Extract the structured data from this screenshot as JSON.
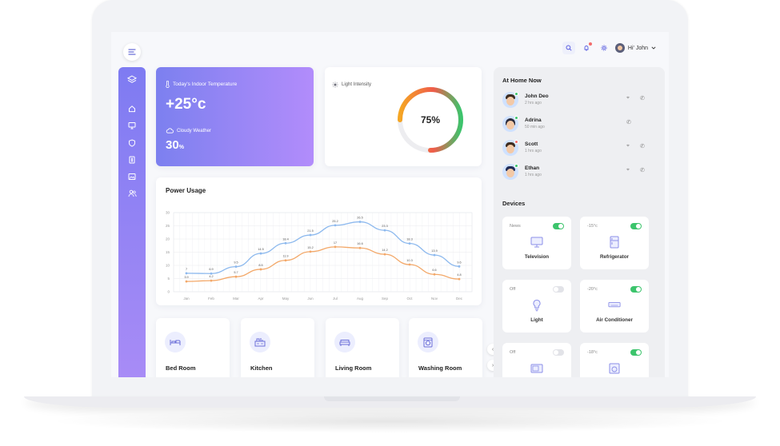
{
  "header": {
    "greeting": "Hi' John",
    "icons": [
      "search-icon",
      "bell-icon",
      "gear-icon",
      "chevron-down-icon"
    ]
  },
  "sidebar": {
    "icons": [
      "layers-icon",
      "home-icon",
      "monitor-icon",
      "shield-icon",
      "door-icon",
      "image-icon",
      "users-icon"
    ]
  },
  "temperature": {
    "title": "Today's Indoor Temperature",
    "value": "+25°c",
    "weather_label": "Cloudy Weather",
    "weather_value": "30",
    "weather_unit": "%"
  },
  "light": {
    "title": "Light Intensity",
    "value_label": "75%",
    "value": 0.75
  },
  "power": {
    "title": "Power Usage"
  },
  "chart_data": {
    "type": "line",
    "title": "Power Usage",
    "categories": [
      "Jan",
      "Feb",
      "Mar",
      "Apr",
      "May",
      "Jun",
      "Jul",
      "Aug",
      "Sep",
      "Oct",
      "Nov",
      "Dec"
    ],
    "yticks": [
      "0",
      "5",
      "10",
      "15",
      "20",
      "25",
      "30"
    ],
    "ylim": [
      0,
      30
    ],
    "grid": true,
    "series": [
      {
        "color": "#8db9ee",
        "values": [
          7,
          6.9,
          9.5,
          14.5,
          18.4,
          21.5,
          25.2,
          26.5,
          23.3,
          18.3,
          13.9,
          9.6
        ],
        "labels": [
          "7",
          "6.9",
          "9.5",
          "14.5",
          "18.4",
          "21.5",
          "25.2",
          "26.5",
          "23.3",
          "18.3",
          "13.9",
          "9.6"
        ]
      },
      {
        "color": "#f3a869",
        "values": [
          3.9,
          4.2,
          5.7,
          8.5,
          11.9,
          15.2,
          17,
          16.6,
          14.2,
          10.3,
          6.6,
          4.8
        ],
        "labels": [
          "3.9",
          "4.2",
          "5.7",
          "8.5",
          "11.9",
          "15.2",
          "17",
          "16.6",
          "14.2",
          "10.3",
          "6.6",
          "4.8"
        ]
      }
    ]
  },
  "rooms": [
    {
      "label": "Bed Room",
      "icon": "bed-icon"
    },
    {
      "label": "Kitchen",
      "icon": "kitchen-icon"
    },
    {
      "label": "Living Room",
      "icon": "sofa-icon"
    },
    {
      "label": "Washing Room",
      "icon": "washing-machine-icon"
    }
  ],
  "at_home": {
    "title": "At Home Now",
    "people": [
      {
        "name": "John Deo",
        "time": "2 hrs ago",
        "status_color": "#3cc46c",
        "hair": "#3d2b1f",
        "actions": [
          "location-icon",
          "phone-icon"
        ]
      },
      {
        "name": "Adrina",
        "time": "50 min ago",
        "status_color": "#3cc46c",
        "hair": "#2a2a3a",
        "actions": [
          "phone-icon"
        ]
      },
      {
        "name": "Scott",
        "time": "1 hrs ago",
        "status_color": "#f26c6c",
        "hair": "#3d2b1f",
        "actions": [
          "location-icon",
          "phone-icon"
        ]
      },
      {
        "name": "Ethan",
        "time": "1 hrs ago",
        "status_color": "#3cc46c",
        "hair": "#1f2a55",
        "actions": [
          "location-icon",
          "phone-icon"
        ]
      }
    ]
  },
  "devices": {
    "title": "Devices",
    "items": [
      {
        "state": "News",
        "name": "Television",
        "on": true,
        "icon": "tv-icon"
      },
      {
        "state": "-15°c",
        "name": "Refrigerator",
        "on": true,
        "icon": "fridge-icon"
      },
      {
        "state": "Off",
        "name": "Light",
        "on": false,
        "icon": "bulb-icon"
      },
      {
        "state": "-20°c",
        "name": "Air Conditioner",
        "on": true,
        "icon": "ac-icon"
      },
      {
        "state": "Off",
        "name": "",
        "on": false,
        "icon": "microwave-icon"
      },
      {
        "state": "-18°c",
        "name": "",
        "on": true,
        "icon": "washer-icon"
      }
    ]
  },
  "colors": {
    "accent": "#7c80ef",
    "accent_2": "#b28cfb",
    "on": "#3cc46c"
  }
}
